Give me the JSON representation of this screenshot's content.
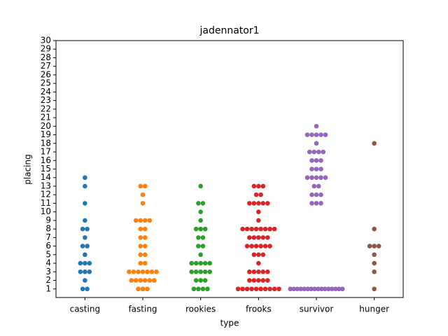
{
  "chart_data": {
    "type": "swarm",
    "title": "jadennator1",
    "xlabel": "type",
    "ylabel": "placing",
    "categories": [
      "casting",
      "fasting",
      "rookies",
      "frooks",
      "survivor",
      "hunger"
    ],
    "colors": [
      "#1f77b4",
      "#ff7f0e",
      "#2ca02c",
      "#d62728",
      "#9467bd",
      "#8c564b"
    ],
    "values": [
      [
        14,
        13,
        11,
        9,
        8,
        8,
        7,
        6,
        6,
        5,
        4,
        4,
        4,
        3,
        3,
        3,
        2,
        1,
        1
      ],
      [
        13,
        13,
        12,
        11,
        9,
        9,
        9,
        9,
        8,
        8,
        7,
        7,
        6,
        6,
        5,
        5,
        4,
        4,
        3,
        3,
        3,
        3,
        3,
        3,
        3,
        2,
        2,
        2,
        2,
        2,
        2,
        1,
        1,
        1
      ],
      [
        13,
        11,
        11,
        10,
        9,
        8,
        8,
        8,
        7,
        7,
        6,
        6,
        5,
        4,
        4,
        4,
        4,
        4,
        3,
        3,
        3,
        3,
        3,
        2,
        2,
        2,
        1,
        1,
        1,
        1
      ],
      [
        13,
        13,
        13,
        12,
        12,
        11,
        11,
        11,
        11,
        11,
        10,
        9,
        8,
        8,
        8,
        8,
        8,
        8,
        8,
        8,
        7,
        7,
        7,
        7,
        7,
        6,
        6,
        6,
        6,
        6,
        6,
        5,
        5,
        5,
        4,
        3,
        3,
        3,
        3,
        3,
        2,
        2,
        2,
        2,
        2,
        1,
        1,
        1,
        1,
        1,
        1,
        1,
        1,
        1,
        1
      ],
      [
        20,
        19,
        19,
        19,
        19,
        19,
        18,
        17,
        17,
        17,
        17,
        16,
        16,
        16,
        15,
        15,
        15,
        14,
        14,
        14,
        14,
        14,
        13,
        13,
        12,
        12,
        12,
        11,
        11,
        11,
        1,
        1,
        1,
        1,
        1,
        1,
        1,
        1,
        1,
        1,
        1,
        1,
        1,
        1,
        1,
        1
      ],
      [
        18,
        8,
        6,
        6,
        6,
        5,
        4,
        3,
        1
      ]
    ],
    "ylim": [
      0,
      30
    ],
    "yticks": [
      1,
      2,
      3,
      4,
      5,
      6,
      7,
      8,
      9,
      10,
      11,
      12,
      13,
      14,
      15,
      16,
      17,
      18,
      19,
      20,
      21,
      22,
      23,
      24,
      25,
      26,
      27,
      28,
      29,
      30
    ]
  }
}
